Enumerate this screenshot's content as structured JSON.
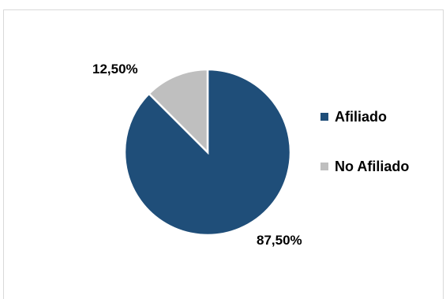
{
  "chart_data": {
    "type": "pie",
    "categories": [
      "Afiliado",
      "No Afiliado"
    ],
    "values": [
      87.5,
      12.5
    ],
    "data_labels": [
      "87,50%",
      "12,50%"
    ],
    "colors": [
      "#1f4e79",
      "#bfbfbf"
    ],
    "start_angle": "12 o'clock, clockwise",
    "legend_position": "right"
  }
}
